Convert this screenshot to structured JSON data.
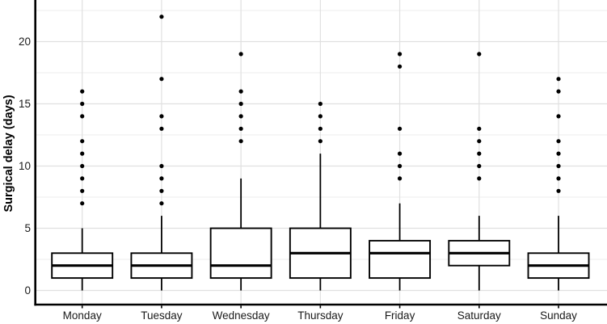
{
  "chart_data": {
    "type": "boxplot",
    "title": "",
    "xlabel": "",
    "ylabel": "Surgical delay (days)",
    "categories": [
      "Monday",
      "Tuesday",
      "Wednesday",
      "Thursday",
      "Friday",
      "Saturday",
      "Sunday"
    ],
    "series": [
      {
        "name": "Monday",
        "whisker_low": 0,
        "q1": 1,
        "median": 2,
        "q3": 3,
        "whisker_high": 5,
        "outliers": [
          7,
          8,
          9,
          10,
          11,
          12,
          14,
          15,
          16
        ]
      },
      {
        "name": "Tuesday",
        "whisker_low": 0,
        "q1": 1,
        "median": 2,
        "q3": 3,
        "whisker_high": 6,
        "outliers": [
          7,
          8,
          9,
          10,
          13,
          14,
          17,
          22
        ]
      },
      {
        "name": "Wednesday",
        "whisker_low": 0,
        "q1": 1,
        "median": 2,
        "q3": 5,
        "whisker_high": 9,
        "outliers": [
          12,
          13,
          14,
          15,
          16,
          19
        ]
      },
      {
        "name": "Thursday",
        "whisker_low": 0,
        "q1": 1,
        "median": 3,
        "q3": 5,
        "whisker_high": 11,
        "outliers": [
          12,
          13,
          14,
          15
        ]
      },
      {
        "name": "Friday",
        "whisker_low": 0,
        "q1": 1,
        "median": 3,
        "q3": 4,
        "whisker_high": 7,
        "outliers": [
          9,
          10,
          11,
          13,
          18,
          19
        ]
      },
      {
        "name": "Saturday",
        "whisker_low": 0,
        "q1": 2,
        "median": 3,
        "q3": 4,
        "whisker_high": 6,
        "outliers": [
          9,
          10,
          11,
          12,
          13,
          19
        ]
      },
      {
        "name": "Sunday",
        "whisker_low": 0,
        "q1": 1,
        "median": 2,
        "q3": 3,
        "whisker_high": 6,
        "outliers": [
          8,
          9,
          10,
          11,
          12,
          14,
          16,
          17
        ]
      }
    ],
    "yticks": [
      0,
      5,
      10,
      15,
      20
    ],
    "yticks_minor": [
      2.5,
      7.5,
      12.5,
      17.5,
      22.5
    ],
    "ylim": [
      -1.15,
      23.35
    ],
    "grid": true,
    "legend": "none",
    "colors": {
      "background": "#ffffff",
      "grid_major": "#e0e0e0",
      "grid_minor": "#ececec",
      "axis_line": "#000000",
      "box_stroke": "#000000",
      "box_fill": "#ffffff",
      "outlier": "#000000",
      "tick_text": "#1a1a1a",
      "axis_title_text": "#000000"
    }
  }
}
